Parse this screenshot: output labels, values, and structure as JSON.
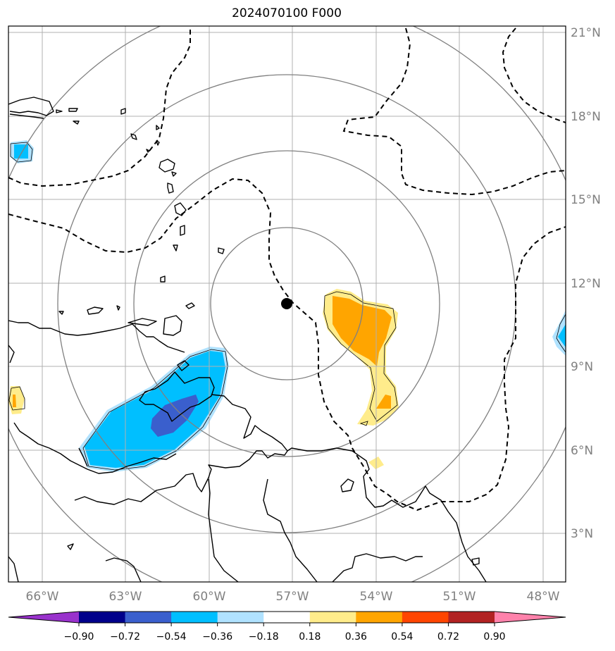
{
  "title": "2024070100 F000",
  "lon_labels": [
    "66°W",
    "63°W",
    "60°W",
    "57°W",
    "54°W",
    "51°W",
    "48°W"
  ],
  "lat_labels": [
    "21°N",
    "18°N",
    "15°N",
    "12°N",
    "9°N",
    "6°N",
    "3°N"
  ],
  "colorbar": {
    "ticks": [
      "−0.90",
      "−0.72",
      "−0.54",
      "−0.36",
      "−0.18",
      "0.18",
      "0.36",
      "0.54",
      "0.72",
      "0.90"
    ],
    "colors": [
      "#9932cc",
      "#00008b",
      "#3a5fcd",
      "#00bfff",
      "#b0e2ff",
      "#ffffff",
      "#ffec8b",
      "#ffa500",
      "#ff4500",
      "#b22222",
      "#ff82ab"
    ]
  },
  "center_marker": {
    "lon": -57.2,
    "lat": 11.3
  },
  "fill_colors": {
    "light_blue": "#b0e2ff",
    "deep_sky_blue": "#00bfff",
    "royal_blue": "#3a5fcd",
    "light_yellow": "#ffec8b",
    "orange": "#ffa500"
  }
}
